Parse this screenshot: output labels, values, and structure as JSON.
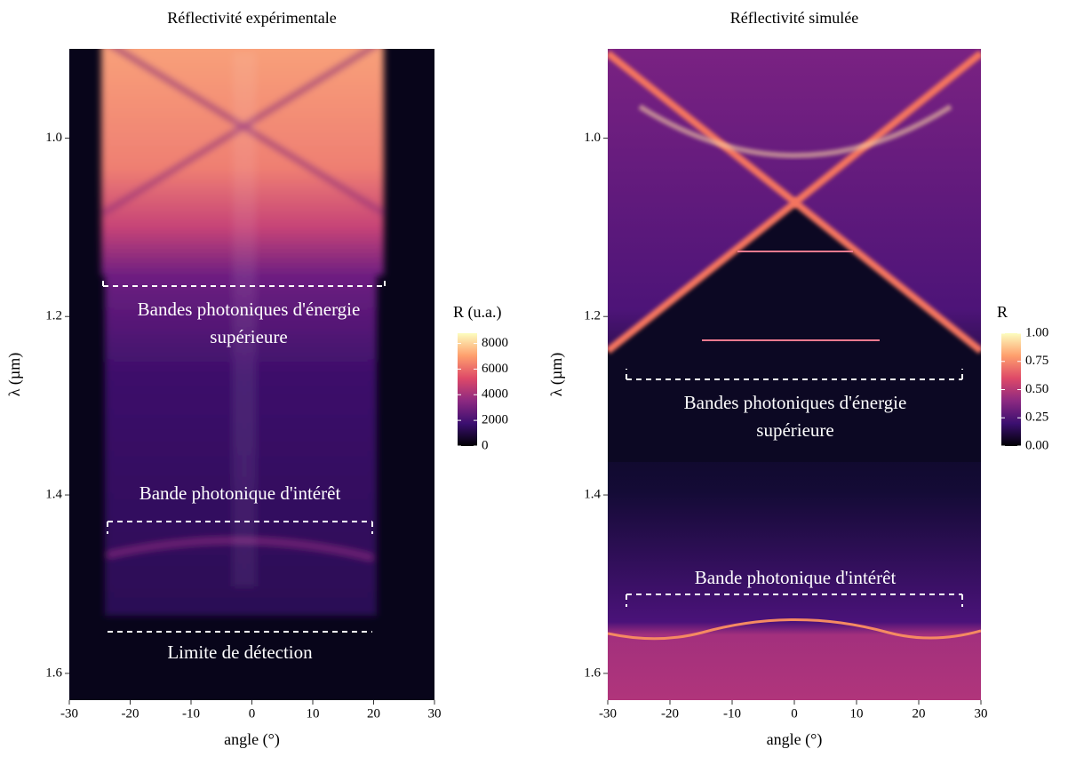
{
  "chart_data": [
    {
      "type": "heatmap",
      "title": "Réflectivité expérimentale",
      "x_label": "angle (°)",
      "y_label": "λ (µm)",
      "xlim": [
        -30,
        30
      ],
      "xticks": [
        -30,
        -20,
        -10,
        0,
        10,
        20,
        30
      ],
      "ylim": [
        0.9,
        1.63
      ],
      "y_reversed": true,
      "yticks": [
        {
          "value": 1,
          "label": "1.0"
        },
        1.2,
        1.4,
        1.6
      ],
      "colorbar": {
        "title": "R (u.a.)",
        "lim": [
          0,
          8800
        ],
        "ticks": [
          0,
          2000,
          4000,
          6000,
          8000
        ],
        "colors": [
          "#000004",
          "#3b0f70",
          "#8c2981",
          "#de4968",
          "#fe9f6d",
          "#fcfdbf"
        ]
      },
      "annotations": [
        [
          "Bandes photoniques d'énergie",
          "supérieure"
        ],
        [
          "Bande photonique d'intérêt"
        ],
        [
          "Limite de détection"
        ]
      ]
    },
    {
      "type": "heatmap",
      "title": "Réflectivité simulée",
      "x_label": "angle (°)",
      "y_label": "λ (µm)",
      "xlim": [
        -30,
        30
      ],
      "xticks": [
        -30,
        -20,
        -10,
        0,
        10,
        20,
        30
      ],
      "ylim": [
        0.9,
        1.63
      ],
      "y_reversed": true,
      "yticks": [
        {
          "value": 1,
          "label": "1.0"
        },
        1.2,
        1.4,
        1.6
      ],
      "colorbar": {
        "title": "R",
        "lim": [
          0,
          1
        ],
        "ticks": [
          {
            "value": 0,
            "label": "0.00"
          },
          {
            "value": 0.25,
            "label": "0.25"
          },
          {
            "value": 0.5,
            "label": "0.50"
          },
          {
            "value": 0.75,
            "label": "0.75"
          },
          {
            "value": 1,
            "label": "1.00"
          }
        ],
        "colors": [
          "#000004",
          "#3b0f70",
          "#8c2981",
          "#de4968",
          "#fe9f6d",
          "#fcfdbf"
        ]
      },
      "annotations": [
        [
          "Bandes photoniques d'énergie",
          "supérieure"
        ],
        [
          "Bande photonique d'intérêt"
        ]
      ]
    }
  ]
}
